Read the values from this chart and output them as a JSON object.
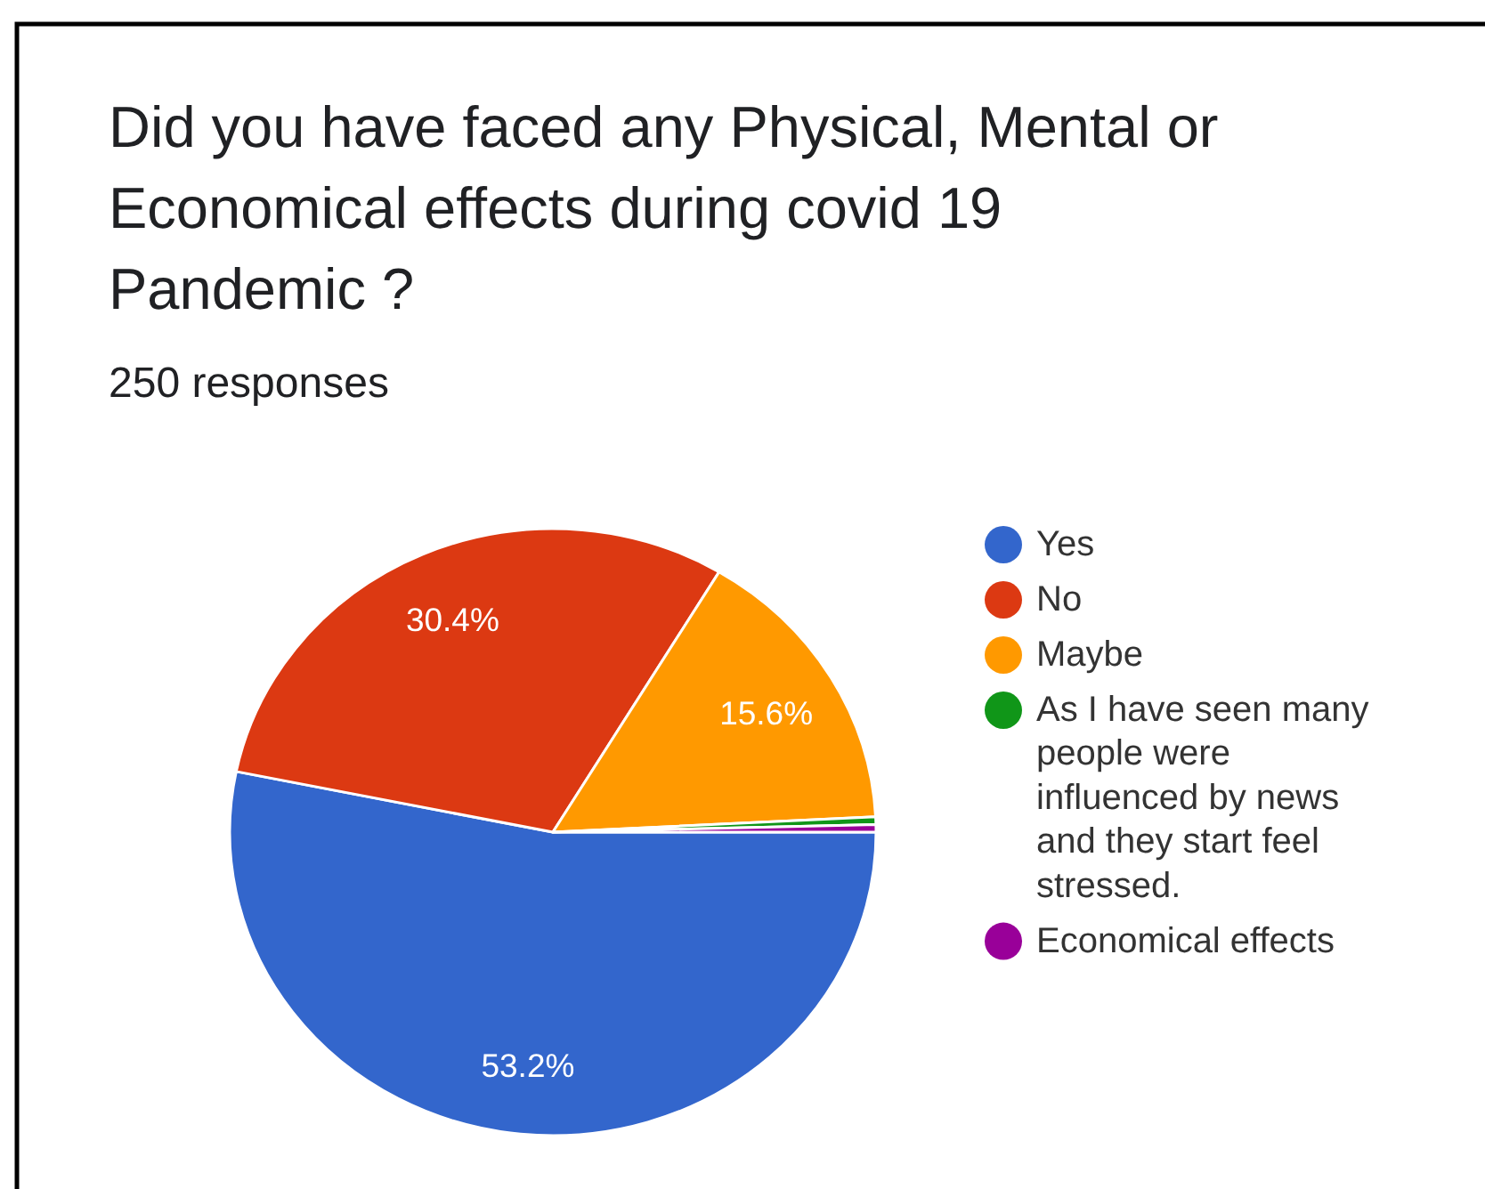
{
  "chart_data": {
    "type": "pie",
    "title": "Did you have faced any Physical, Mental or Economical effects during covid 19 Pandemic ?",
    "subtitle": "250 responses",
    "categories": [
      "Yes",
      "No",
      "Maybe",
      "As I have seen many people were influenced by news and they start feel stressed.",
      "Economical effects"
    ],
    "values": [
      53.2,
      30.4,
      15.6,
      0.4,
      0.4
    ],
    "colors": [
      "#3366cc",
      "#dc3912",
      "#ff9900",
      "#109618",
      "#990099"
    ],
    "value_labels": [
      "53.2%",
      "30.4%",
      "15.6%",
      null,
      null
    ],
    "legend": "right"
  }
}
